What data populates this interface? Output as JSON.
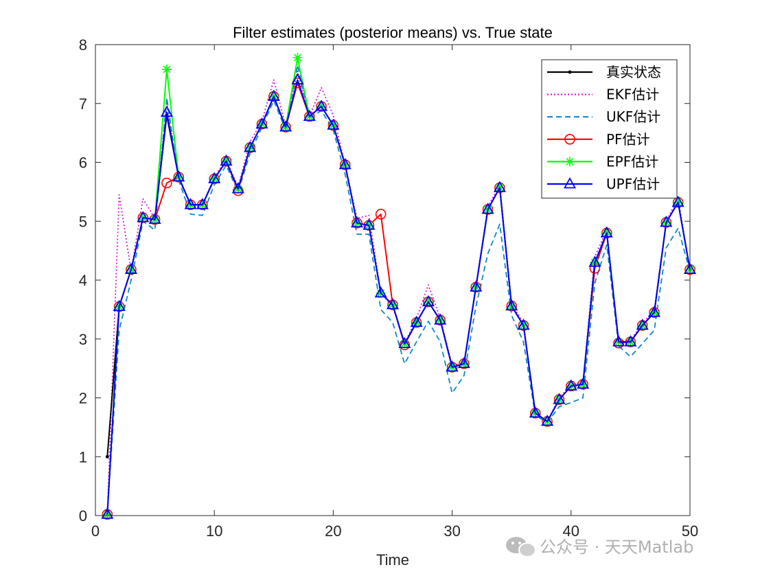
{
  "chart_data": {
    "type": "line",
    "title": "Filter estimates (posterior means) vs. True state",
    "xlabel": "Time",
    "ylabel": "",
    "xlim": [
      0,
      50
    ],
    "ylim": [
      0,
      8
    ],
    "xticks": [
      0,
      10,
      20,
      30,
      40,
      50
    ],
    "yticks": [
      0,
      1,
      2,
      3,
      4,
      5,
      6,
      7,
      8
    ],
    "grid": false,
    "legend_position": "top-right",
    "x": [
      1,
      2,
      3,
      4,
      5,
      6,
      7,
      8,
      9,
      10,
      11,
      12,
      13,
      14,
      15,
      16,
      17,
      18,
      19,
      20,
      21,
      22,
      23,
      24,
      25,
      26,
      27,
      28,
      29,
      30,
      31,
      32,
      33,
      34,
      35,
      36,
      37,
      38,
      39,
      40,
      41,
      42,
      43,
      44,
      45,
      46,
      47,
      48,
      49,
      50
    ],
    "series": [
      {
        "name": "真实状态",
        "color": "#000000",
        "style": "solid",
        "marker": "dot",
        "values": [
          1.0,
          3.55,
          4.18,
          5.06,
          5.03,
          6.8,
          5.75,
          5.28,
          5.28,
          5.72,
          6.02,
          5.55,
          6.25,
          6.65,
          7.12,
          6.6,
          7.35,
          6.78,
          6.95,
          6.63,
          5.96,
          4.97,
          4.93,
          3.78,
          3.58,
          2.92,
          3.28,
          3.63,
          3.32,
          2.52,
          2.58,
          3.88,
          5.2,
          5.57,
          3.56,
          3.23,
          1.74,
          1.6,
          1.97,
          2.2,
          2.23,
          4.3,
          4.8,
          2.95,
          2.95,
          3.23,
          3.45,
          4.98,
          5.32,
          4.18
        ]
      },
      {
        "name": "EKF估计",
        "color": "#d61ad6",
        "style": "dotted",
        "marker": "none",
        "values": [
          0.02,
          5.45,
          4.15,
          5.38,
          5.05,
          7.0,
          5.72,
          5.28,
          5.28,
          5.75,
          6.05,
          5.58,
          6.35,
          6.7,
          7.4,
          6.62,
          7.55,
          6.78,
          7.27,
          6.8,
          5.96,
          5.05,
          5.1,
          3.78,
          3.55,
          2.92,
          3.35,
          3.92,
          3.35,
          2.55,
          2.6,
          3.9,
          5.25,
          5.62,
          3.6,
          3.27,
          1.75,
          1.6,
          2.0,
          2.22,
          2.27,
          4.4,
          4.85,
          2.95,
          2.98,
          3.26,
          3.5,
          5.0,
          5.4,
          4.15
        ]
      },
      {
        "name": "UKF估计",
        "color": "#0f86c7",
        "style": "dashed",
        "marker": "none",
        "values": [
          0.02,
          3.15,
          4.0,
          5.0,
          4.85,
          7.1,
          5.7,
          5.12,
          5.1,
          5.62,
          5.95,
          5.5,
          6.15,
          6.6,
          7.05,
          6.55,
          7.65,
          6.75,
          6.88,
          6.55,
          5.8,
          4.78,
          4.78,
          3.5,
          3.28,
          2.58,
          2.95,
          3.3,
          2.95,
          2.08,
          2.38,
          3.55,
          4.45,
          4.95,
          3.4,
          2.95,
          1.7,
          1.58,
          1.85,
          1.92,
          2.0,
          3.95,
          4.6,
          2.88,
          2.7,
          2.92,
          3.15,
          4.55,
          4.88,
          4.15
        ]
      },
      {
        "name": "PF估计",
        "color": "#ff0000",
        "style": "solid",
        "marker": "circle",
        "values": [
          0.02,
          3.55,
          4.18,
          5.06,
          5.03,
          5.65,
          5.75,
          5.28,
          5.28,
          5.72,
          6.02,
          5.52,
          6.25,
          6.65,
          7.12,
          6.6,
          7.35,
          6.78,
          6.95,
          6.63,
          5.96,
          4.97,
          4.93,
          5.12,
          3.58,
          2.9,
          3.28,
          3.63,
          3.32,
          2.52,
          2.58,
          3.88,
          5.2,
          5.57,
          3.56,
          3.23,
          1.74,
          1.6,
          1.97,
          2.2,
          2.23,
          4.2,
          4.8,
          2.93,
          2.95,
          3.23,
          3.45,
          4.98,
          5.32,
          4.18
        ]
      },
      {
        "name": "EPF估计",
        "color": "#00ff00",
        "style": "solid",
        "marker": "asterisk",
        "values": [
          0.02,
          3.55,
          4.18,
          5.06,
          5.03,
          7.58,
          5.75,
          5.28,
          5.28,
          5.72,
          6.02,
          5.55,
          6.25,
          6.65,
          7.12,
          6.6,
          7.78,
          6.78,
          6.95,
          6.63,
          5.96,
          4.97,
          4.93,
          3.78,
          3.58,
          2.92,
          3.28,
          3.63,
          3.32,
          2.52,
          2.58,
          3.88,
          5.2,
          5.57,
          3.56,
          3.23,
          1.74,
          1.6,
          1.97,
          2.2,
          2.23,
          4.3,
          4.8,
          2.95,
          2.95,
          3.23,
          3.45,
          4.98,
          5.32,
          4.18
        ]
      },
      {
        "name": "UPF估计",
        "color": "#0000ff",
        "style": "solid",
        "marker": "triangle",
        "values": [
          0.02,
          3.55,
          4.18,
          5.06,
          5.03,
          6.85,
          5.75,
          5.28,
          5.28,
          5.72,
          6.02,
          5.55,
          6.25,
          6.65,
          7.12,
          6.6,
          7.4,
          6.78,
          6.95,
          6.63,
          5.96,
          4.97,
          4.93,
          3.78,
          3.58,
          2.92,
          3.28,
          3.63,
          3.32,
          2.52,
          2.58,
          3.88,
          5.2,
          5.57,
          3.56,
          3.23,
          1.74,
          1.6,
          1.97,
          2.2,
          2.23,
          4.3,
          4.8,
          2.95,
          2.95,
          3.23,
          3.45,
          4.98,
          5.32,
          4.18
        ]
      }
    ]
  },
  "watermark": {
    "text": "公众号 · 天天Matlab",
    "icon": "wechat-icon"
  }
}
